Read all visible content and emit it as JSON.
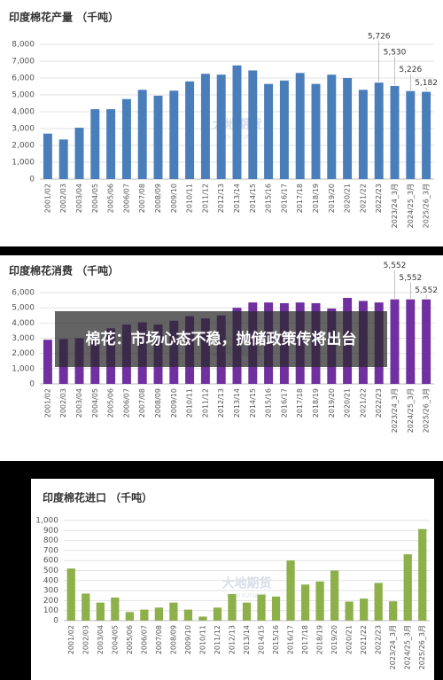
{
  "headline": "棉花：市场心态不稳，抛储政策传将出台",
  "chart_data": [
    {
      "type": "bar",
      "title": "印度棉花产量 （千吨）",
      "watermark": "大地期货",
      "watermark_sub": "DADI FUTURES",
      "color": "#4a7ebb",
      "grid": true,
      "categories": [
        "2001/02",
        "2002/03",
        "2003/04",
        "2004/05",
        "2005/06",
        "2006/07",
        "2007/08",
        "2008/09",
        "2009/10",
        "2010/11",
        "2011/12",
        "2012/13",
        "2013/14",
        "2014/15",
        "2015/16",
        "2016/17",
        "2017/18",
        "2018/19",
        "2019/20",
        "2020/21",
        "2021/22",
        "2022/23",
        "2023/24_3月",
        "2024/25_3月",
        "2025/26_3月"
      ],
      "values": [
        2700,
        2350,
        3050,
        4150,
        4150,
        4750,
        5300,
        4950,
        5250,
        5800,
        6250,
        6200,
        6750,
        6450,
        5650,
        5850,
        6300,
        5650,
        6200,
        6000,
        5300,
        5726,
        5530,
        5226,
        5182
      ],
      "value_labels": [
        null,
        null,
        null,
        null,
        null,
        null,
        null,
        null,
        null,
        null,
        null,
        null,
        null,
        null,
        null,
        null,
        null,
        null,
        null,
        null,
        null,
        "5,726",
        "5,530",
        "5,226",
        "5,182"
      ],
      "ylim": [
        0,
        8000
      ],
      "yticks": [
        0,
        {
          "value": 1000,
          "label": "1,000"
        },
        {
          "value": 2000,
          "label": "2,000"
        },
        {
          "value": 3000,
          "label": "3,000"
        },
        {
          "value": 4000,
          "label": "4,000"
        },
        {
          "value": 5000,
          "label": "5,000"
        },
        {
          "value": 6000,
          "label": "6,000"
        },
        {
          "value": 7000,
          "label": "7,000"
        },
        {
          "value": 8000,
          "label": "8,000"
        }
      ]
    },
    {
      "type": "bar",
      "title": "印度棉花消费 （千吨）",
      "watermark": "大地期货",
      "watermark_sub": "DADI FUTURES",
      "color": "#7030a0",
      "grid": true,
      "categories": [
        "2001/02",
        "2002/03",
        "2003/04",
        "2004/05",
        "2005/06",
        "2006/07",
        "2007/08",
        "2008/09",
        "2009/10",
        "2010/11",
        "2011/12",
        "2012/13",
        "2013/14",
        "2014/15",
        "2015/16",
        "2016/17",
        "2017/18",
        "2018/19",
        "2019/20",
        "2020/21",
        "2021/22",
        "2022/23",
        "2023/24_3月",
        "2024/25_3月",
        "2025/26_3月"
      ],
      "values": [
        2900,
        2950,
        3000,
        3250,
        3650,
        3900,
        4050,
        3900,
        4150,
        4450,
        4300,
        4500,
        5000,
        5350,
        5350,
        5300,
        5350,
        5300,
        4950,
        5650,
        5450,
        5350,
        5552,
        5552,
        5552
      ],
      "value_labels": [
        null,
        null,
        null,
        null,
        null,
        null,
        null,
        null,
        null,
        null,
        null,
        null,
        null,
        null,
        null,
        null,
        null,
        null,
        null,
        null,
        null,
        null,
        "5,552",
        "5,552",
        "5,552"
      ],
      "ylim": [
        0,
        6000
      ],
      "yticks": [
        0,
        {
          "value": 1000,
          "label": "1,000"
        },
        {
          "value": 2000,
          "label": "2,000"
        },
        {
          "value": 3000,
          "label": "3,000"
        },
        {
          "value": 4000,
          "label": "4,000"
        },
        {
          "value": 5000,
          "label": "5,000"
        },
        {
          "value": 6000,
          "label": "6,000"
        }
      ]
    },
    {
      "type": "bar",
      "title": "印度棉花进口 （千吨）",
      "watermark": "大地期货",
      "watermark_sub": "DADI FUTURES",
      "color": "#8db04a",
      "grid": true,
      "categories": [
        "2001/02",
        "2002/03",
        "2003/04",
        "2004/05",
        "2005/06",
        "2006/07",
        "2007/08",
        "2008/09",
        "2009/10",
        "2010/11",
        "2011/12",
        "2012/13",
        "2013/14",
        "2014/15",
        "2015/16",
        "2016/17",
        "2017/18",
        "2018/19",
        "2019/20",
        "2020/21",
        "2021/22",
        "2022/23",
        "2023/24_3月",
        "2024/25_3月",
        "2025/26_3月"
      ],
      "values": [
        520,
        270,
        180,
        230,
        85,
        110,
        130,
        180,
        110,
        40,
        130,
        265,
        180,
        260,
        240,
        600,
        360,
        390,
        500,
        190,
        220,
        376,
        193,
        662,
        914
      ],
      "value_labels": [
        null,
        null,
        null,
        null,
        null,
        null,
        null,
        null,
        null,
        null,
        null,
        null,
        null,
        null,
        null,
        null,
        null,
        null,
        null,
        null,
        null,
        null,
        null,
        null,
        null
      ],
      "ylim": [
        0,
        1000
      ],
      "yticks": [
        0,
        100,
        200,
        300,
        400,
        500,
        600,
        700,
        800,
        900,
        {
          "value": 1000,
          "label": "1,000"
        }
      ]
    }
  ]
}
